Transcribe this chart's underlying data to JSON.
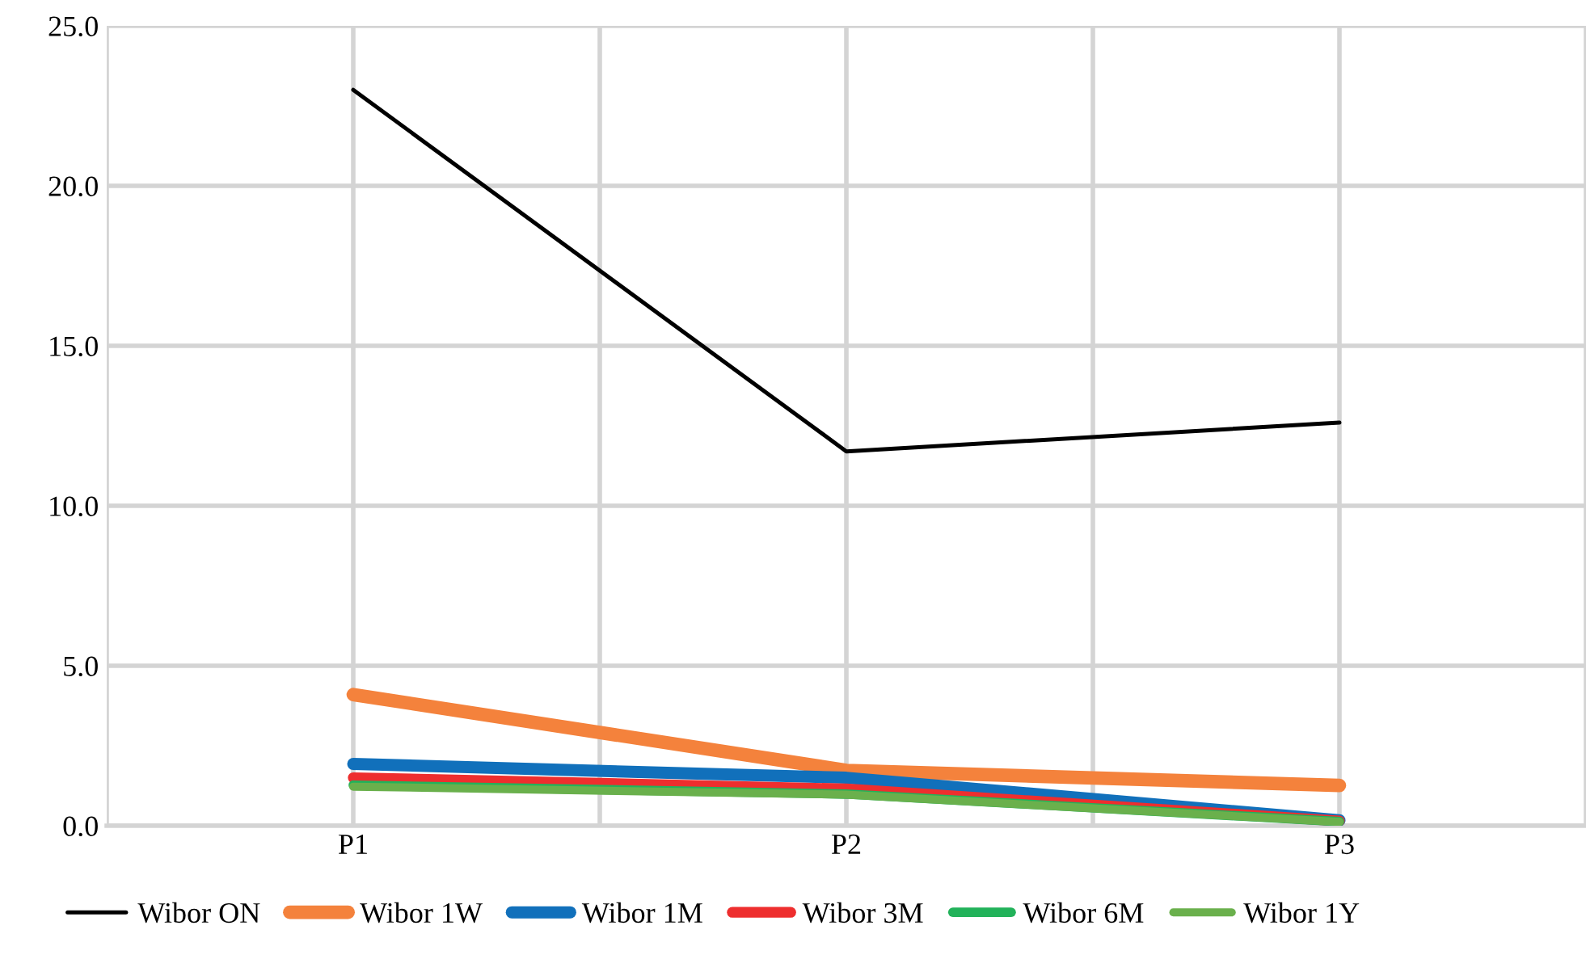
{
  "chart_data": {
    "type": "line",
    "categories": [
      "P1",
      "P2",
      "P3"
    ],
    "series": [
      {
        "name": "Wibor ON",
        "color": "#000000",
        "values": [
          23.0,
          11.7,
          12.6
        ]
      },
      {
        "name": "Wibor 1W",
        "color": "#f4823c",
        "values": [
          4.1,
          1.73,
          1.26
        ]
      },
      {
        "name": "Wibor 1M",
        "color": "#1170bb",
        "values": [
          1.93,
          1.5,
          0.17
        ]
      },
      {
        "name": "Wibor 3M",
        "color": "#ee2e2e",
        "values": [
          1.5,
          1.15,
          0.15
        ]
      },
      {
        "name": "Wibor 6M",
        "color": "#22b25a",
        "values": [
          1.27,
          0.99,
          0.13
        ]
      },
      {
        "name": "Wibor 1Y",
        "color": "#6ab04c",
        "values": [
          1.22,
          0.97,
          0.12
        ]
      }
    ],
    "ylim": [
      0,
      25
    ],
    "yticks": [
      {
        "value": 0,
        "label": "0.0"
      },
      {
        "value": 5,
        "label": "5.0"
      },
      {
        "value": 10,
        "label": "10.0"
      },
      {
        "value": 15,
        "label": "15.0"
      },
      {
        "value": 20,
        "label": "20.0"
      },
      {
        "value": 25,
        "label": "25.0"
      }
    ],
    "grid": true,
    "legend": "bottom",
    "marker": "none",
    "line_style": "solid"
  }
}
